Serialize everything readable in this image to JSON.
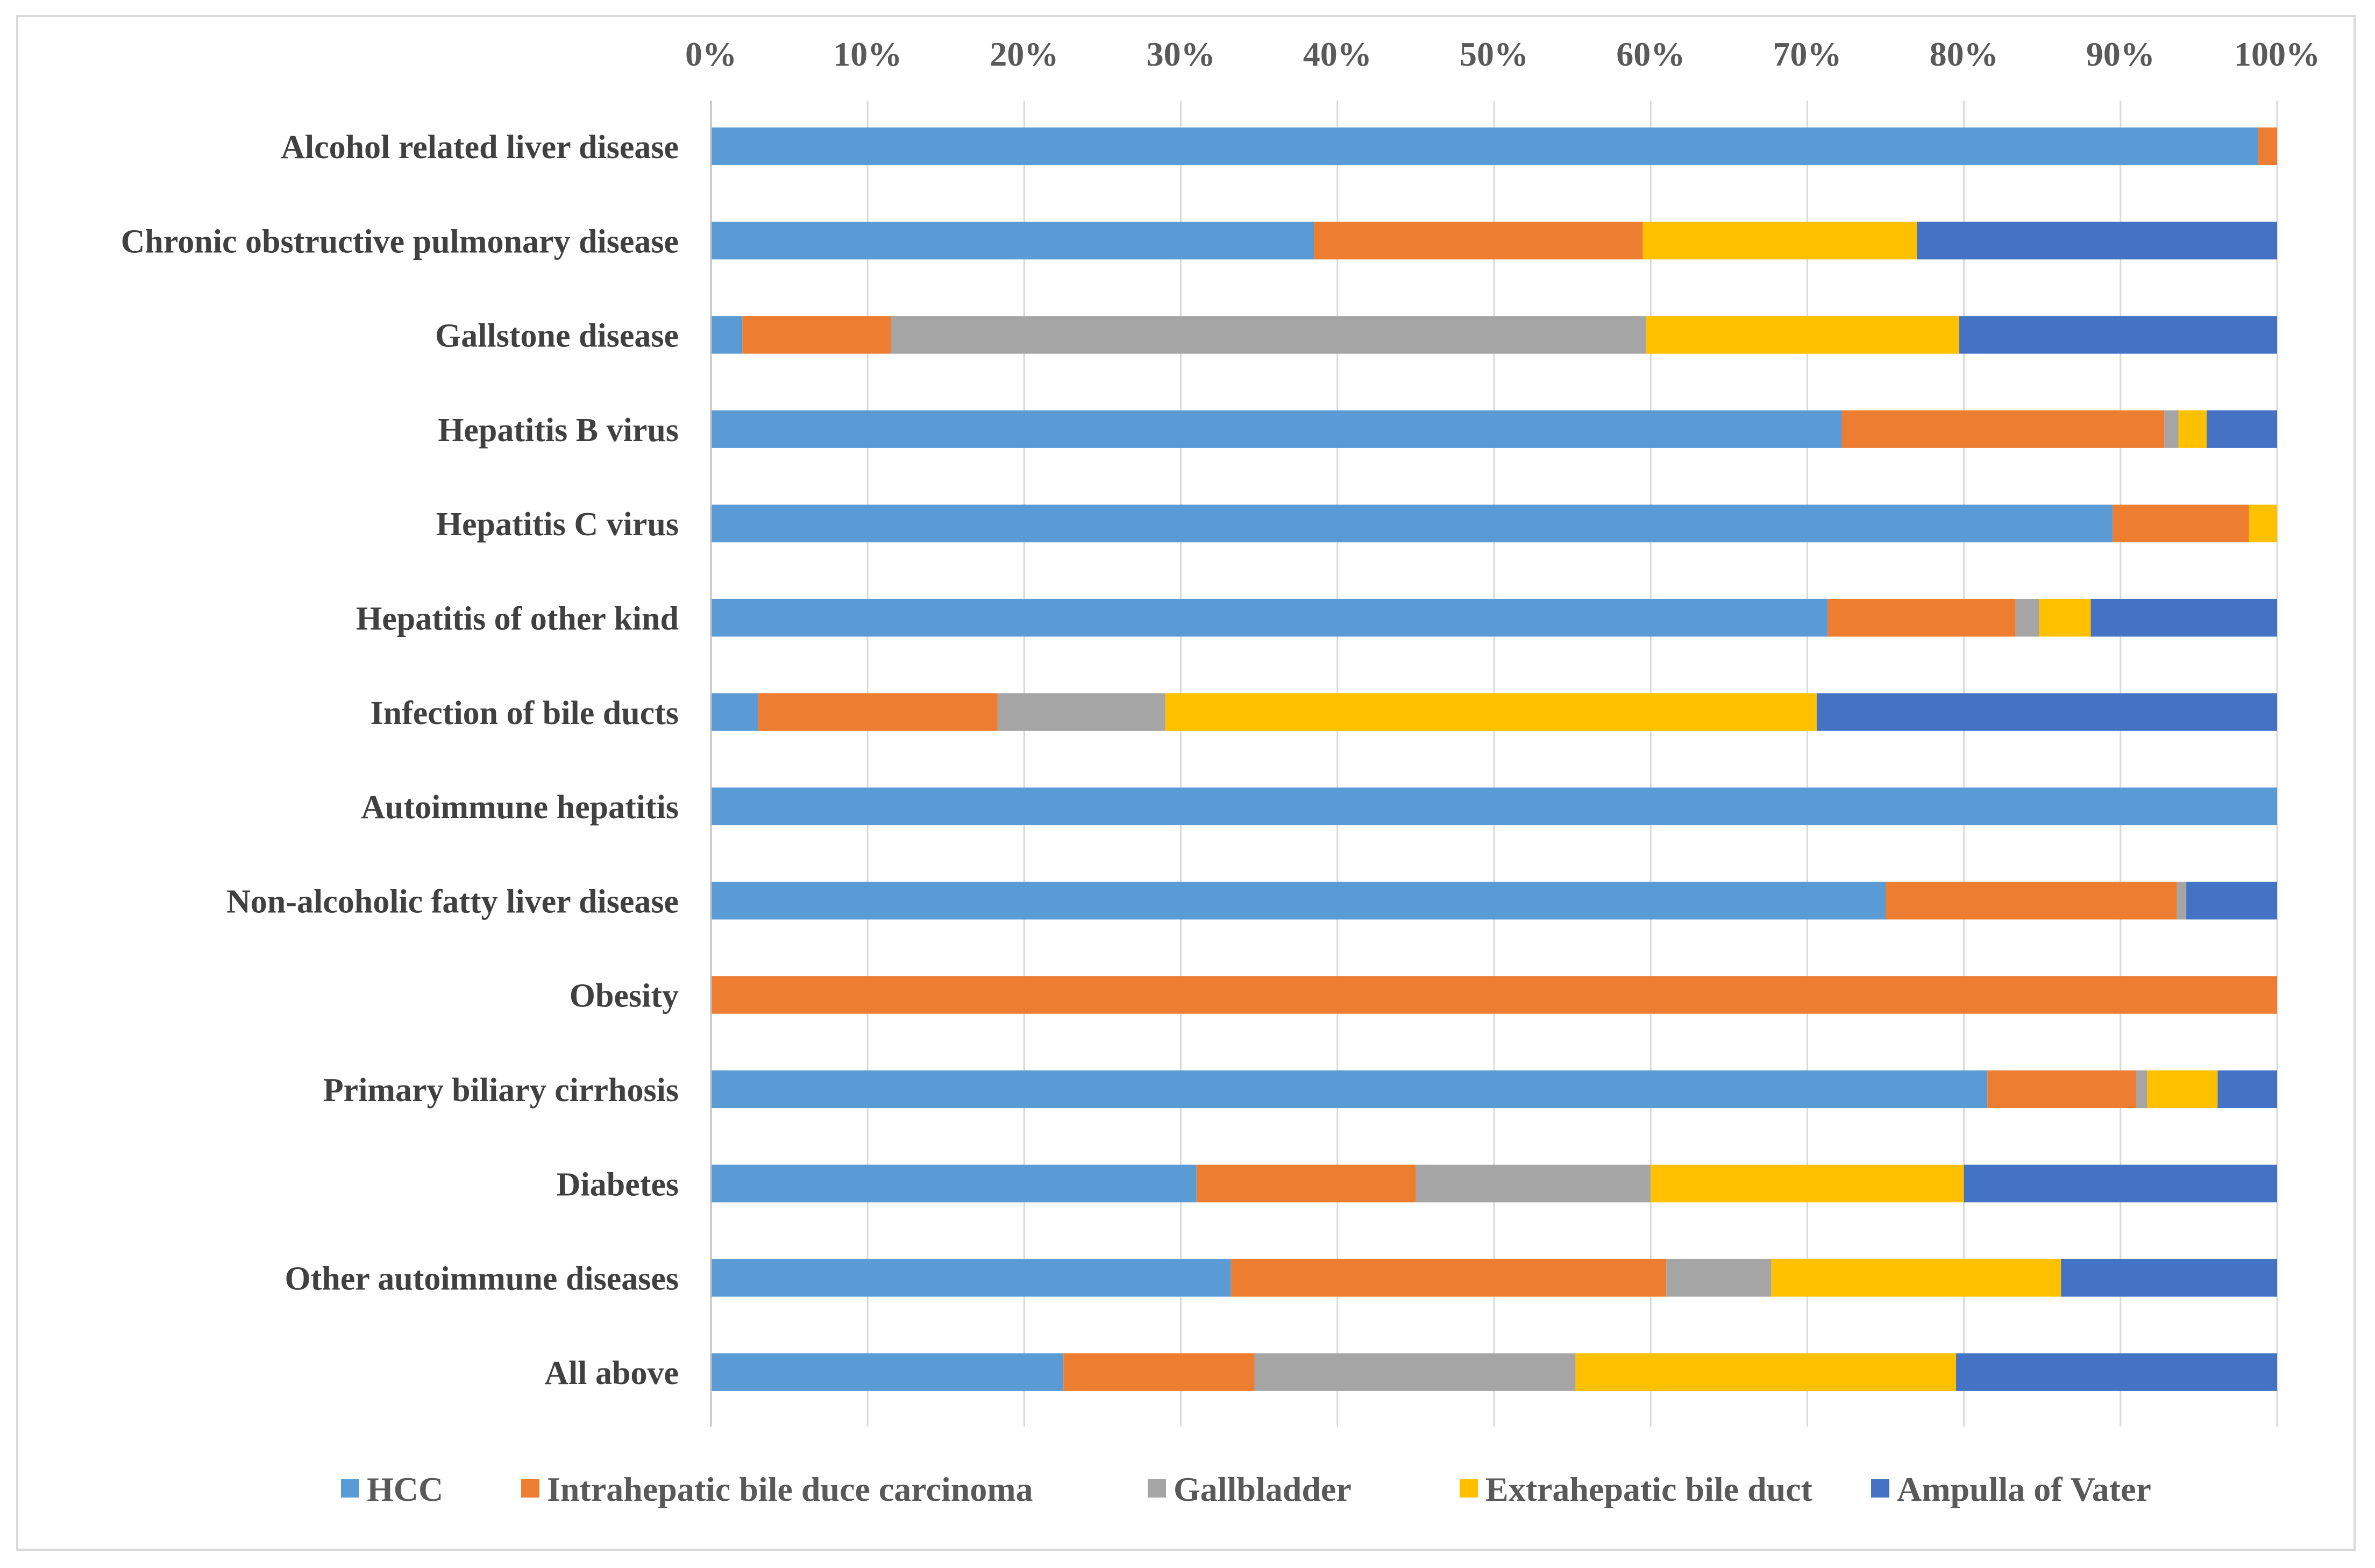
{
  "chart_data": {
    "type": "bar",
    "orientation": "horizontal",
    "stacked": "percent",
    "title": "",
    "xlabel": "",
    "ylabel": "",
    "xlim": [
      0,
      100
    ],
    "x_ticks": [
      0,
      10,
      20,
      30,
      40,
      50,
      60,
      70,
      80,
      90,
      100
    ],
    "x_tick_labels": [
      "0%",
      "10%",
      "20%",
      "30%",
      "40%",
      "50%",
      "60%",
      "70%",
      "80%",
      "90%",
      "100%"
    ],
    "x_axis_position": "top",
    "gridlines": true,
    "legend_position": "bottom",
    "categories": [
      "Alcohol related liver disease",
      "Chronic obstructive pulmonary disease",
      "Gallstone disease",
      "Hepatitis B virus",
      "Hepatitis C virus",
      "Hepatitis of other kind",
      "Infection of bile ducts",
      "Autoimmune hepatitis",
      "Non-alcoholic fatty liver disease",
      "Obesity",
      "Primary biliary cirrhosis",
      "Diabetes",
      "Other autoimmune diseases",
      "All above"
    ],
    "series": [
      {
        "name": "HCC",
        "color": "#5b9bd5",
        "values": [
          98.8,
          38.5,
          2.0,
          72.2,
          89.5,
          71.3,
          3.0,
          100.0,
          75.0,
          0.0,
          81.5,
          31.0,
          33.2,
          22.5
        ]
      },
      {
        "name": "Intrahepatic bile duce carcinoma",
        "color": "#ed7d31",
        "values": [
          1.2,
          21.0,
          9.5,
          20.6,
          8.7,
          12.0,
          15.3,
          0.0,
          18.6,
          100.0,
          9.5,
          14.0,
          27.8,
          12.2
        ]
      },
      {
        "name": "Gallbladder",
        "color": "#a5a5a5",
        "values": [
          0.0,
          0.0,
          48.2,
          0.9,
          0.0,
          1.5,
          10.7,
          0.0,
          0.6,
          0.0,
          0.7,
          15.0,
          6.7,
          20.5
        ]
      },
      {
        "name": "Extrahepatic bile duct",
        "color": "#ffc000",
        "values": [
          0.0,
          17.5,
          20.0,
          1.8,
          1.8,
          3.3,
          41.6,
          0.0,
          0.0,
          0.0,
          4.5,
          20.0,
          18.5,
          24.3
        ]
      },
      {
        "name": "Ampulla of Vater",
        "color": "#4472c4",
        "values": [
          0.0,
          23.0,
          20.3,
          4.5,
          0.0,
          11.9,
          29.4,
          0.0,
          5.8,
          0.0,
          3.8,
          20.0,
          13.8,
          20.5
        ]
      }
    ]
  }
}
